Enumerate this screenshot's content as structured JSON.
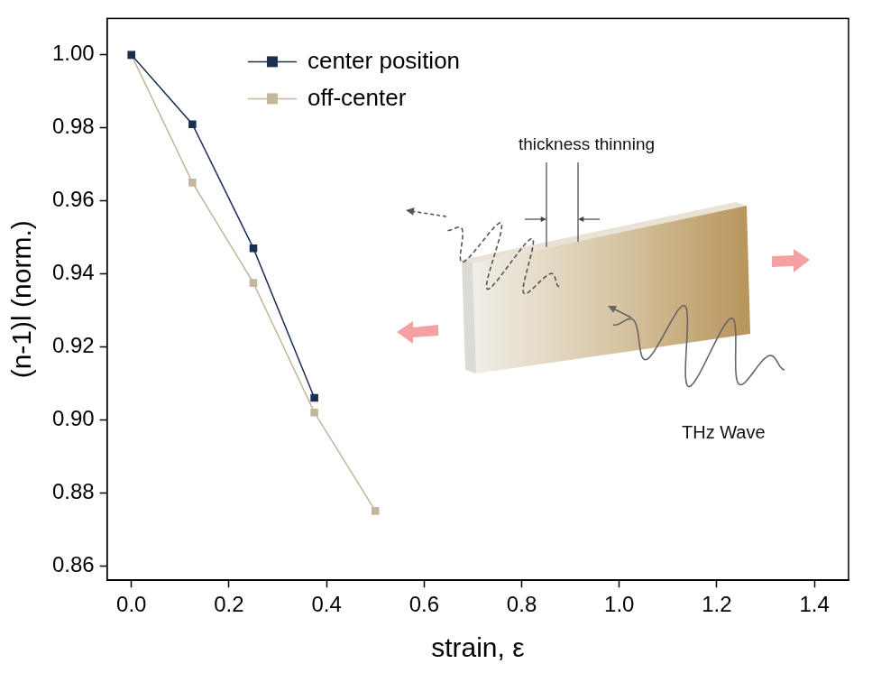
{
  "chart_data": {
    "type": "line",
    "x_label": "strain, ε",
    "y_label": "(n-1)l (norm.)",
    "x": [
      0,
      0.125,
      0.25,
      0.375,
      0.5
    ],
    "series": [
      {
        "name": "center position",
        "color": "#1b3050",
        "marker": "square",
        "line_style": "solid",
        "values": [
          1.0,
          0.981,
          0.947,
          0.906,
          null
        ]
      },
      {
        "name": "off-center",
        "color": "#c4b59c",
        "marker": "square",
        "line_style": "solid",
        "values": [
          1.0,
          0.965,
          0.9375,
          0.902,
          0.875
        ]
      }
    ],
    "xlim": [
      -0.05,
      1.47
    ],
    "xticks": [
      {
        "value": 0,
        "label": "0.0"
      },
      0.2,
      0.4,
      0.6,
      0.8,
      {
        "value": 1,
        "label": "1.0"
      },
      1.2,
      1.4
    ],
    "ylim": [
      0.856,
      1.01
    ],
    "yticks": [
      0.86,
      0.88,
      {
        "value": 0.9,
        "label": "0.90"
      },
      0.92,
      0.94,
      0.96,
      0.98,
      {
        "value": 1,
        "label": "1.00"
      }
    ],
    "grid": false,
    "legend": "upper left",
    "annotations": [
      "thickness thinning",
      "THz Wave"
    ]
  }
}
